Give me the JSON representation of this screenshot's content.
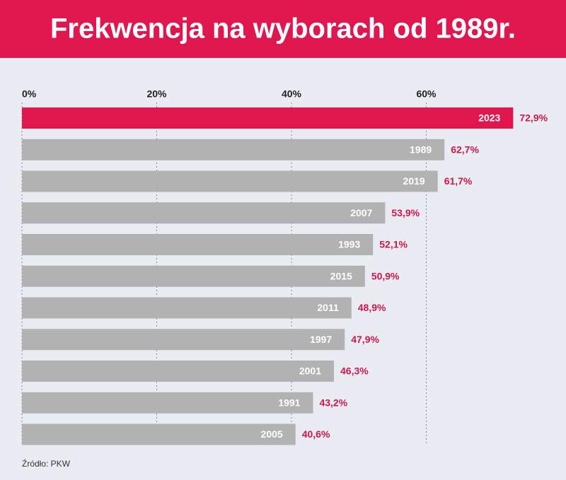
{
  "chart_data": {
    "type": "bar",
    "orientation": "horizontal",
    "title": "Frekwencja na wyborach od 1989r.",
    "categories": [
      "2023",
      "1989",
      "2019",
      "2007",
      "1993",
      "2015",
      "2011",
      "1997",
      "2001",
      "1991",
      "2005"
    ],
    "values": [
      72.9,
      62.7,
      61.7,
      53.9,
      52.1,
      50.9,
      48.9,
      47.9,
      46.3,
      43.2,
      40.6
    ],
    "value_labels": [
      "72,9%",
      "62,7%",
      "61,7%",
      "53,9%",
      "52,1%",
      "50,9%",
      "48,9%",
      "47,9%",
      "46,3%",
      "43,2%",
      "40,6%"
    ],
    "colors": [
      "#e0164f",
      "#b2b2b2",
      "#b2b2b2",
      "#b2b2b2",
      "#b2b2b2",
      "#b2b2b2",
      "#b2b2b2",
      "#b2b2b2",
      "#b2b2b2",
      "#b2b2b2",
      "#b2b2b2"
    ],
    "value_label_color": "#d0164a",
    "xlim": [
      0,
      80
    ],
    "xticks": [
      {
        "value": 0,
        "label": "0%"
      },
      {
        "value": 20,
        "label": "20%"
      },
      {
        "value": 40,
        "label": "40%"
      },
      {
        "value": 60,
        "label": "60%"
      }
    ],
    "grid": true,
    "source": "Źródło: PKW"
  }
}
